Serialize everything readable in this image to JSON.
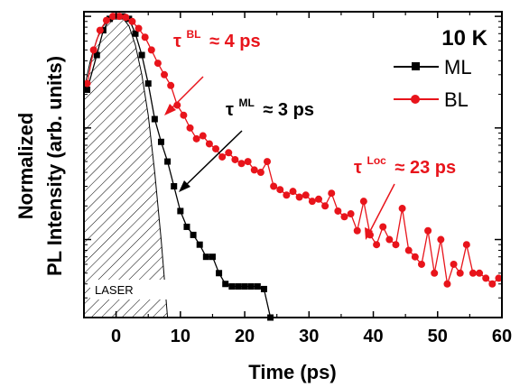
{
  "chart_data": {
    "type": "line",
    "xlabel": "Time (ps)",
    "ylabel_line1": "Normalized",
    "ylabel_line2": "PL Intensity (arb. units)",
    "xlim": [
      -5,
      60
    ],
    "yscale": "log",
    "ylim": [
      0.002,
      1.1
    ],
    "x_ticks": [
      0,
      10,
      20,
      30,
      40,
      50,
      60
    ],
    "temperature_label": "10 K",
    "laser_label": "LASER",
    "annotations": {
      "tau_bl": {
        "base": "τ",
        "sup": "BL",
        "text": "≈ 4 ps",
        "color": "#e8141b"
      },
      "tau_ml": {
        "base": "τ",
        "sup": "ML",
        "text": "≈ 3 ps",
        "color": "#000000"
      },
      "tau_loc": {
        "base": "τ",
        "sup": "Loc",
        "text": "≈ 23 ps",
        "color": "#e8141b"
      }
    },
    "legend": {
      "position": "top-right",
      "entries": [
        "ML",
        "BL"
      ]
    },
    "series": [
      {
        "name": "ML",
        "color": "#000000",
        "marker": "square",
        "x": [
          -4.5,
          -3,
          -2,
          -1,
          0,
          1,
          2,
          3,
          4,
          5,
          6,
          7,
          8,
          9,
          10,
          11,
          12,
          13,
          14,
          15,
          16,
          17,
          18,
          19,
          20,
          21,
          22,
          23,
          24
        ],
        "y": [
          0.22,
          0.45,
          0.75,
          0.95,
          1.0,
          1.0,
          0.95,
          0.7,
          0.45,
          0.25,
          0.12,
          0.075,
          0.05,
          0.03,
          0.018,
          0.013,
          0.011,
          0.009,
          0.007,
          0.007,
          0.005,
          0.004,
          0.0038,
          0.0038,
          0.0038,
          0.0038,
          0.0038,
          0.0036,
          0.002
        ]
      },
      {
        "name": "BL",
        "color": "#e8141b",
        "marker": "circle",
        "x": [
          -4.5,
          -3.5,
          -2.5,
          -1.5,
          -0.5,
          0.5,
          1.5,
          2.5,
          3.5,
          4.5,
          5.5,
          6.5,
          7.5,
          8.5,
          9.5,
          10.5,
          11.5,
          12.5,
          13.5,
          14.5,
          15.5,
          16.5,
          17.5,
          18.5,
          19.5,
          20.5,
          21.5,
          22.5,
          23.5,
          24.5,
          25.5,
          26.5,
          27.5,
          28.5,
          29.5,
          30.5,
          31.5,
          32.5,
          33.5,
          34.5,
          35.5,
          36.5,
          37.5,
          38.5,
          39.5,
          40.5,
          41.5,
          42.5,
          43.5,
          44.5,
          45.5,
          46.5,
          47.5,
          48.5,
          49.5,
          50.5,
          51.5,
          52.5,
          53.5,
          54.5,
          55.5,
          56.5,
          57.5,
          58.5,
          59.5
        ],
        "y": [
          0.25,
          0.5,
          0.75,
          0.92,
          1.0,
          1.0,
          0.98,
          0.9,
          0.78,
          0.65,
          0.5,
          0.38,
          0.3,
          0.24,
          0.16,
          0.13,
          0.1,
          0.08,
          0.085,
          0.072,
          0.065,
          0.055,
          0.06,
          0.052,
          0.048,
          0.05,
          0.042,
          0.04,
          0.05,
          0.03,
          0.028,
          0.025,
          0.027,
          0.024,
          0.025,
          0.022,
          0.023,
          0.02,
          0.026,
          0.018,
          0.016,
          0.017,
          0.012,
          0.022,
          0.011,
          0.009,
          0.013,
          0.01,
          0.009,
          0.019,
          0.008,
          0.007,
          0.006,
          0.012,
          0.005,
          0.01,
          0.004,
          0.006,
          0.005,
          0.009,
          0.005,
          0.005,
          0.0045,
          0.004,
          0.0045
        ]
      }
    ],
    "laser_pulse": {
      "x": [
        -5,
        -4,
        -3,
        -2,
        -1,
        0,
        1,
        2,
        3,
        4,
        5,
        6,
        7,
        8
      ],
      "y": [
        0.22,
        0.4,
        0.62,
        0.82,
        0.95,
        1.0,
        0.97,
        0.82,
        0.55,
        0.3,
        0.13,
        0.04,
        0.01,
        0.0018
      ]
    }
  }
}
